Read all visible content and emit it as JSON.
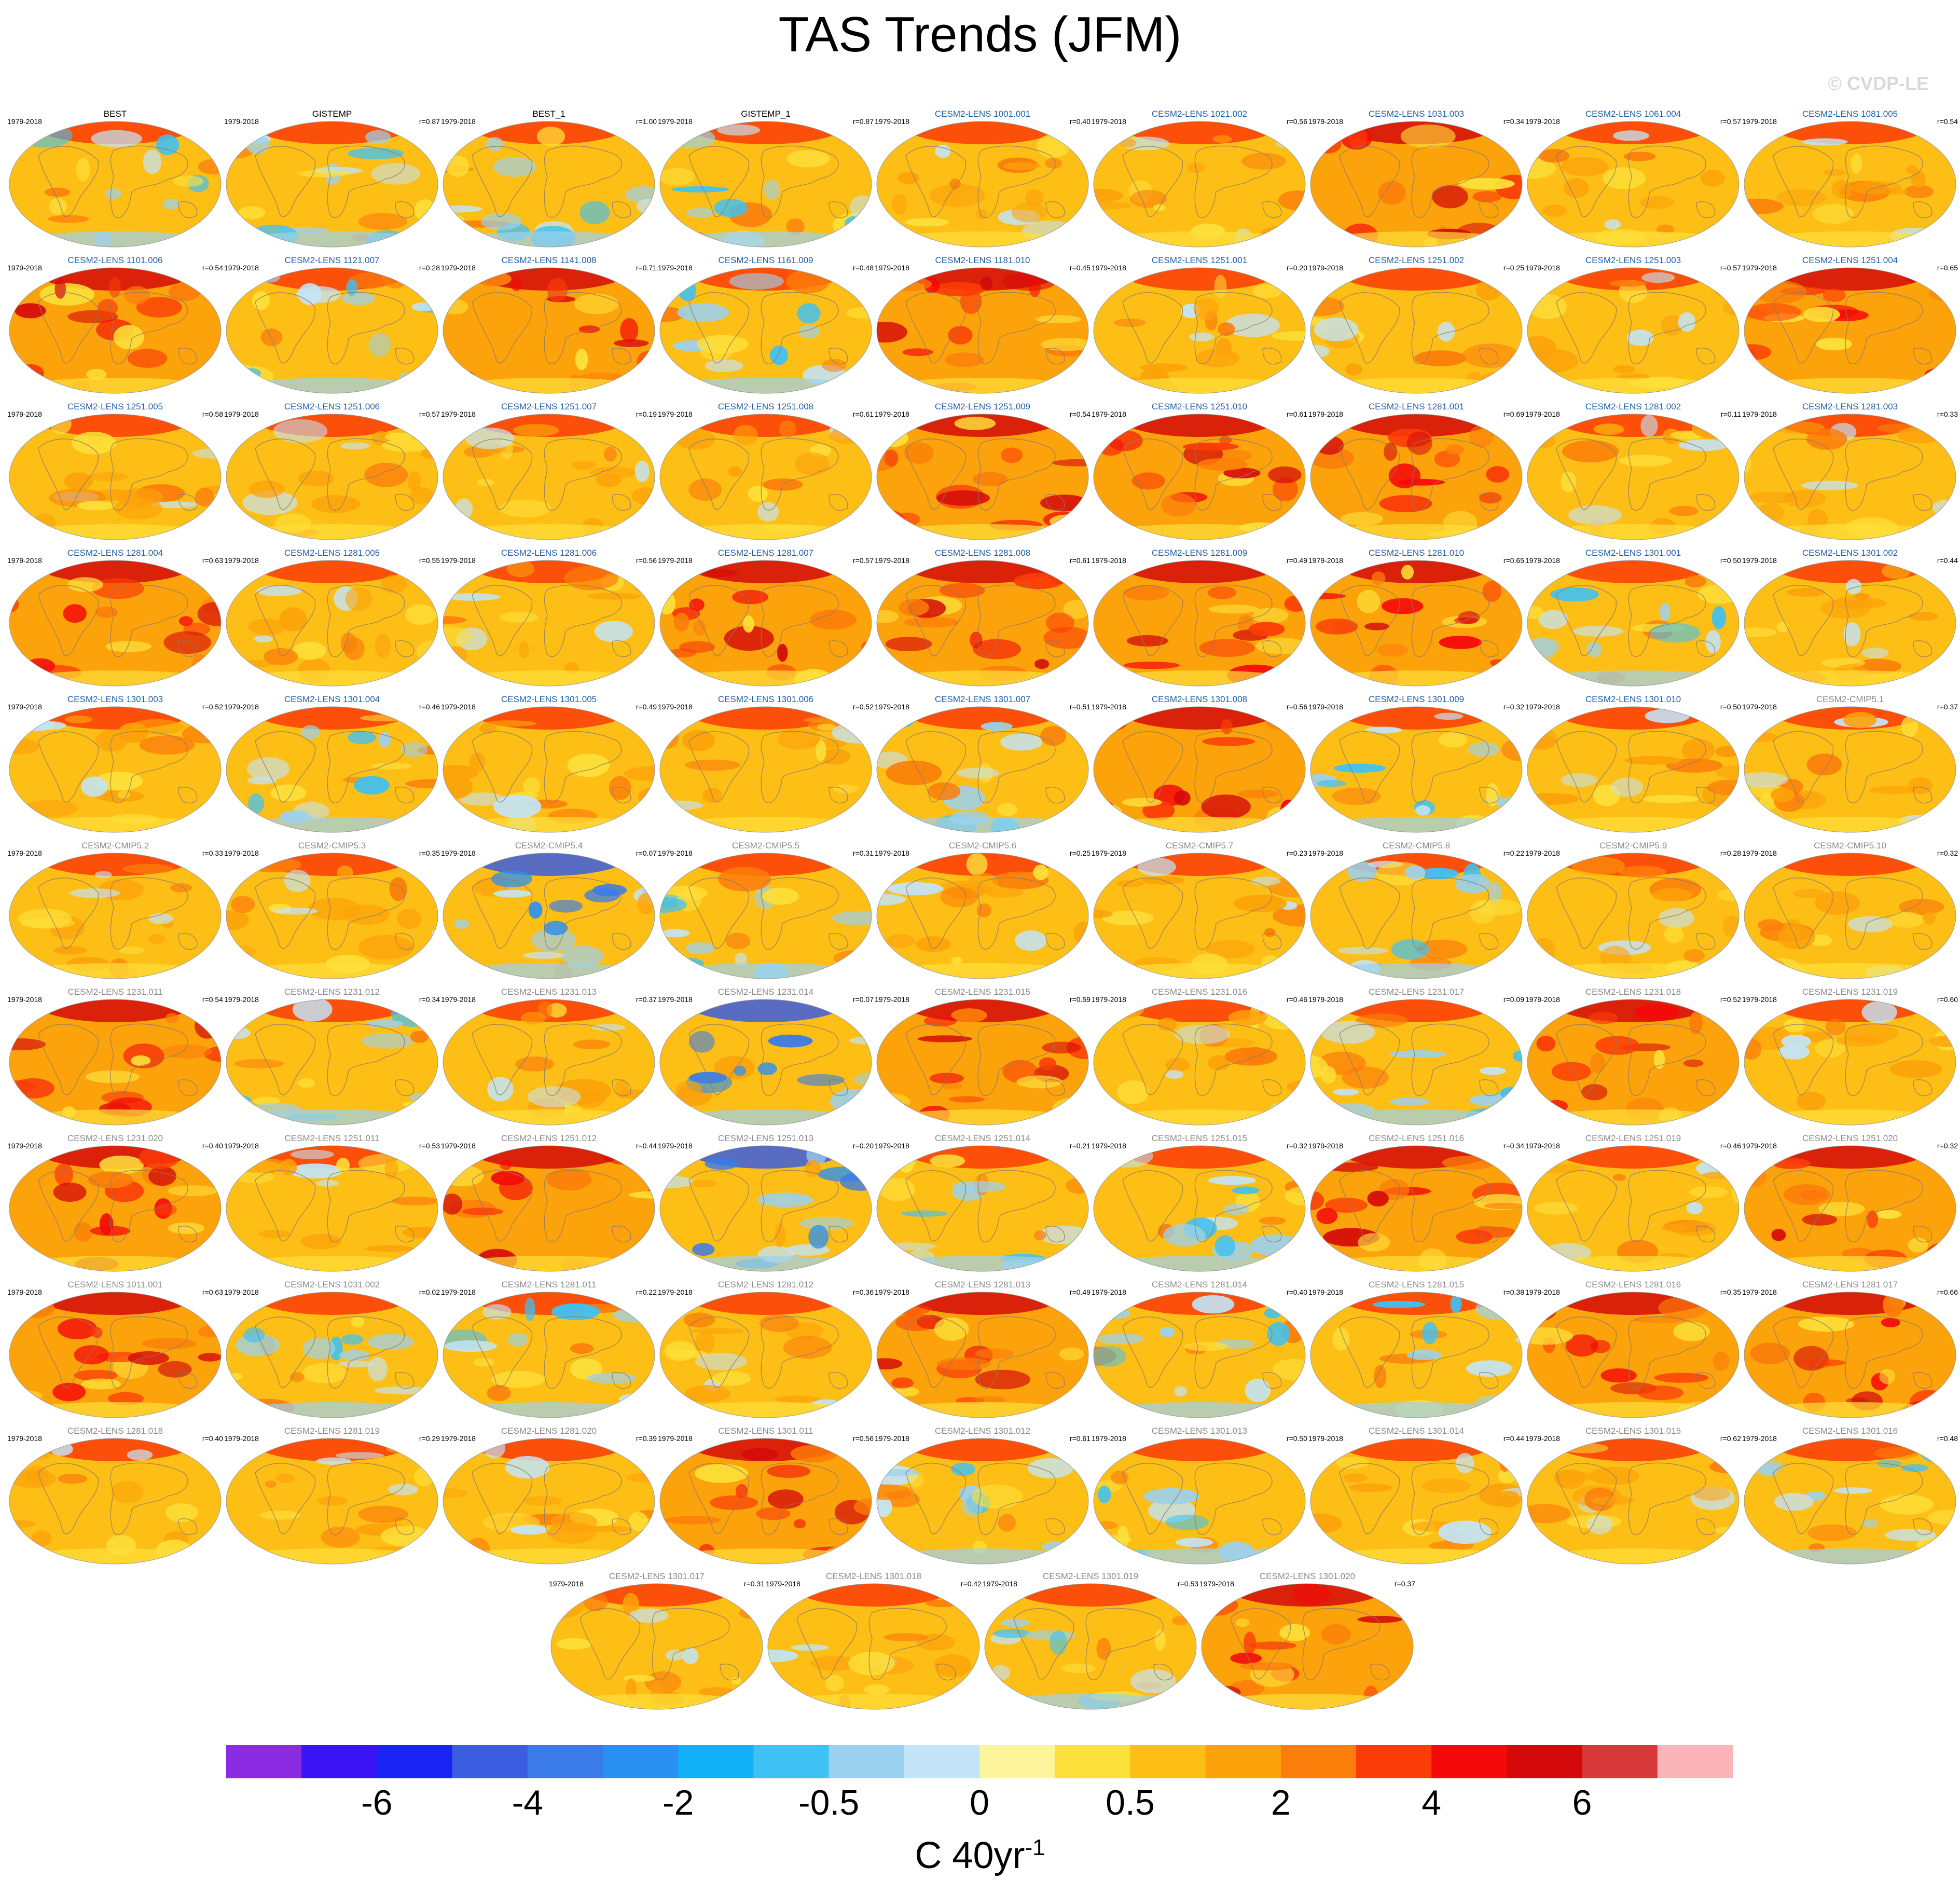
{
  "title": "TAS Trends (JFM)",
  "watermark": "© CVDP-LE",
  "period_label": "1979-2018",
  "colors": {
    "observed_title": "#000000",
    "cesm2_lens_title": "#1f5fa8",
    "other_title": "#8a8a8a",
    "land_outline": "#8c7b6b"
  },
  "panels": [
    {
      "name": "BEST",
      "corr": "",
      "style": "obs",
      "pattern": "mixed"
    },
    {
      "name": "GISTEMP",
      "corr": "r=0.87",
      "style": "obs",
      "pattern": "mixed"
    },
    {
      "name": "BEST_1",
      "corr": "r=1.00",
      "style": "obs",
      "pattern": "mixed"
    },
    {
      "name": "GISTEMP_1",
      "corr": "r=0.87",
      "style": "obs",
      "pattern": "mixed"
    },
    {
      "name": "CESM2-LENS 1001.001",
      "corr": "r=0.40",
      "style": "lens",
      "pattern": "warm"
    },
    {
      "name": "CESM2-LENS 1021.002",
      "corr": "r=0.56",
      "style": "lens",
      "pattern": "warm"
    },
    {
      "name": "CESM2-LENS 1031.003",
      "corr": "r=0.34",
      "style": "lens",
      "pattern": "hot"
    },
    {
      "name": "CESM2-LENS 1061.004",
      "corr": "r=0.57",
      "style": "lens",
      "pattern": "warm"
    },
    {
      "name": "CESM2-LENS 1081.005",
      "corr": "r=0.54",
      "style": "lens",
      "pattern": "warm"
    },
    {
      "name": "CESM2-LENS 1101.006",
      "corr": "r=0.54",
      "style": "lens",
      "pattern": "hot"
    },
    {
      "name": "CESM2-LENS 1121.007",
      "corr": "r=0.28",
      "style": "lens",
      "pattern": "mixed"
    },
    {
      "name": "CESM2-LENS 1141.008",
      "corr": "r=0.71",
      "style": "lens",
      "pattern": "hot"
    },
    {
      "name": "CESM2-LENS 1161.009",
      "corr": "r=0.48",
      "style": "lens",
      "pattern": "mixed"
    },
    {
      "name": "CESM2-LENS 1181.010",
      "corr": "r=0.45",
      "style": "lens",
      "pattern": "hot"
    },
    {
      "name": "CESM2-LENS 1251.001",
      "corr": "r=0.20",
      "style": "lens",
      "pattern": "warm"
    },
    {
      "name": "CESM2-LENS 1251.002",
      "corr": "r=0.25",
      "style": "lens",
      "pattern": "warm"
    },
    {
      "name": "CESM2-LENS 1251.003",
      "corr": "r=0.57",
      "style": "lens",
      "pattern": "warm"
    },
    {
      "name": "CESM2-LENS 1251.004",
      "corr": "r=0.65",
      "style": "lens",
      "pattern": "hot"
    },
    {
      "name": "CESM2-LENS 1251.005",
      "corr": "r=0.58",
      "style": "lens",
      "pattern": "warm"
    },
    {
      "name": "CESM2-LENS 1251.006",
      "corr": "r=0.57",
      "style": "lens",
      "pattern": "warm"
    },
    {
      "name": "CESM2-LENS 1251.007",
      "corr": "r=0.19",
      "style": "lens",
      "pattern": "warm"
    },
    {
      "name": "CESM2-LENS 1251.008",
      "corr": "r=0.61",
      "style": "lens",
      "pattern": "warm"
    },
    {
      "name": "CESM2-LENS 1251.009",
      "corr": "r=0.54",
      "style": "lens",
      "pattern": "hot"
    },
    {
      "name": "CESM2-LENS 1251.010",
      "corr": "r=0.61",
      "style": "lens",
      "pattern": "hot"
    },
    {
      "name": "CESM2-LENS 1281.001",
      "corr": "r=0.69",
      "style": "lens",
      "pattern": "hot"
    },
    {
      "name": "CESM2-LENS 1281.002",
      "corr": "r=0.11",
      "style": "lens",
      "pattern": "warm"
    },
    {
      "name": "CESM2-LENS 1281.003",
      "corr": "r=0.33",
      "style": "lens",
      "pattern": "warm"
    },
    {
      "name": "CESM2-LENS 1281.004",
      "corr": "r=0.63",
      "style": "lens",
      "pattern": "hot"
    },
    {
      "name": "CESM2-LENS 1281.005",
      "corr": "r=0.55",
      "style": "lens",
      "pattern": "warm"
    },
    {
      "name": "CESM2-LENS 1281.006",
      "corr": "r=0.56",
      "style": "lens",
      "pattern": "warm"
    },
    {
      "name": "CESM2-LENS 1281.007",
      "corr": "r=0.57",
      "style": "lens",
      "pattern": "hot"
    },
    {
      "name": "CESM2-LENS 1281.008",
      "corr": "r=0.61",
      "style": "lens",
      "pattern": "hot"
    },
    {
      "name": "CESM2-LENS 1281.009",
      "corr": "r=0.49",
      "style": "lens",
      "pattern": "hot"
    },
    {
      "name": "CESM2-LENS 1281.010",
      "corr": "r=0.65",
      "style": "lens",
      "pattern": "hot"
    },
    {
      "name": "CESM2-LENS 1301.001",
      "corr": "r=0.50",
      "style": "lens",
      "pattern": "mixed"
    },
    {
      "name": "CESM2-LENS 1301.002",
      "corr": "r=0.44",
      "style": "lens",
      "pattern": "warm"
    },
    {
      "name": "CESM2-LENS 1301.003",
      "corr": "r=0.52",
      "style": "lens",
      "pattern": "warm"
    },
    {
      "name": "CESM2-LENS 1301.004",
      "corr": "r=0.46",
      "style": "lens",
      "pattern": "mixed"
    },
    {
      "name": "CESM2-LENS 1301.005",
      "corr": "r=0.49",
      "style": "lens",
      "pattern": "warm"
    },
    {
      "name": "CESM2-LENS 1301.006",
      "corr": "r=0.52",
      "style": "lens",
      "pattern": "warm"
    },
    {
      "name": "CESM2-LENS 1301.007",
      "corr": "r=0.51",
      "style": "lens",
      "pattern": "mixed"
    },
    {
      "name": "CESM2-LENS 1301.008",
      "corr": "r=0.56",
      "style": "lens",
      "pattern": "hot"
    },
    {
      "name": "CESM2-LENS 1301.009",
      "corr": "r=0.32",
      "style": "lens",
      "pattern": "mixed"
    },
    {
      "name": "CESM2-LENS 1301.010",
      "corr": "r=0.50",
      "style": "lens",
      "pattern": "warm"
    },
    {
      "name": "CESM2-CMIP5.1",
      "corr": "r=0.37",
      "style": "other",
      "pattern": "warm"
    },
    {
      "name": "CESM2-CMIP5.2",
      "corr": "r=0.33",
      "style": "other",
      "pattern": "warm"
    },
    {
      "name": "CESM2-CMIP5.3",
      "corr": "r=0.35",
      "style": "other",
      "pattern": "warm"
    },
    {
      "name": "CESM2-CMIP5.4",
      "corr": "r=0.07",
      "style": "other",
      "pattern": "cool"
    },
    {
      "name": "CESM2-CMIP5.5",
      "corr": "r=0.31",
      "style": "other",
      "pattern": "mixed"
    },
    {
      "name": "CESM2-CMIP5.6",
      "corr": "r=0.25",
      "style": "other",
      "pattern": "warm"
    },
    {
      "name": "CESM2-CMIP5.7",
      "corr": "r=0.23",
      "style": "other",
      "pattern": "warm"
    },
    {
      "name": "CESM2-CMIP5.8",
      "corr": "r=0.22",
      "style": "other",
      "pattern": "mixed"
    },
    {
      "name": "CESM2-CMIP5.9",
      "corr": "r=0.28",
      "style": "other",
      "pattern": "warm"
    },
    {
      "name": "CESM2-CMIP5.10",
      "corr": "r=0.32",
      "style": "other",
      "pattern": "warm"
    },
    {
      "name": "CESM2-LENS 1231.011",
      "corr": "r=0.54",
      "style": "other",
      "pattern": "hot"
    },
    {
      "name": "CESM2-LENS 1231.012",
      "corr": "r=0.34",
      "style": "other",
      "pattern": "mixed"
    },
    {
      "name": "CESM2-LENS 1231.013",
      "corr": "r=0.37",
      "style": "other",
      "pattern": "warm"
    },
    {
      "name": "CESM2-LENS 1231.014",
      "corr": "r=0.07",
      "style": "other",
      "pattern": "cool"
    },
    {
      "name": "CESM2-LENS 1231.015",
      "corr": "r=0.59",
      "style": "other",
      "pattern": "hot"
    },
    {
      "name": "CESM2-LENS 1231.016",
      "corr": "r=0.46",
      "style": "other",
      "pattern": "warm"
    },
    {
      "name": "CESM2-LENS 1231.017",
      "corr": "r=0.09",
      "style": "other",
      "pattern": "mixed"
    },
    {
      "name": "CESM2-LENS 1231.018",
      "corr": "r=0.52",
      "style": "other",
      "pattern": "hot"
    },
    {
      "name": "CESM2-LENS 1231.019",
      "corr": "r=0.60",
      "style": "other",
      "pattern": "warm"
    },
    {
      "name": "CESM2-LENS 1231.020",
      "corr": "r=0.40",
      "style": "other",
      "pattern": "hot"
    },
    {
      "name": "CESM2-LENS 1251.011",
      "corr": "r=0.53",
      "style": "other",
      "pattern": "warm"
    },
    {
      "name": "CESM2-LENS 1251.012",
      "corr": "r=0.44",
      "style": "other",
      "pattern": "hot"
    },
    {
      "name": "CESM2-LENS 1251.013",
      "corr": "r=0.20",
      "style": "other",
      "pattern": "cool"
    },
    {
      "name": "CESM2-LENS 1251.014",
      "corr": "r=0.21",
      "style": "other",
      "pattern": "mixed"
    },
    {
      "name": "CESM2-LENS 1251.015",
      "corr": "r=0.32",
      "style": "other",
      "pattern": "mixed"
    },
    {
      "name": "CESM2-LENS 1251.016",
      "corr": "r=0.34",
      "style": "other",
      "pattern": "hot"
    },
    {
      "name": "CESM2-LENS 1251.019",
      "corr": "r=0.46",
      "style": "other",
      "pattern": "warm"
    },
    {
      "name": "CESM2-LENS 1251.020",
      "corr": "r=0.32",
      "style": "other",
      "pattern": "hot"
    },
    {
      "name": "CESM2-LENS 1011.001",
      "corr": "r=0.63",
      "style": "other",
      "pattern": "hot"
    },
    {
      "name": "CESM2-LENS 1031.002",
      "corr": "r=0.02",
      "style": "other",
      "pattern": "mixed"
    },
    {
      "name": "CESM2-LENS 1281.011",
      "corr": "r=0.22",
      "style": "other",
      "pattern": "mixed"
    },
    {
      "name": "CESM2-LENS 1281.012",
      "corr": "r=0.36",
      "style": "other",
      "pattern": "warm"
    },
    {
      "name": "CESM2-LENS 1281.013",
      "corr": "r=0.49",
      "style": "other",
      "pattern": "hot"
    },
    {
      "name": "CESM2-LENS 1281.014",
      "corr": "r=0.40",
      "style": "other",
      "pattern": "mixed"
    },
    {
      "name": "CESM2-LENS 1281.015",
      "corr": "r=0.38",
      "style": "other",
      "pattern": "mixed"
    },
    {
      "name": "CESM2-LENS 1281.016",
      "corr": "r=0.35",
      "style": "other",
      "pattern": "hot"
    },
    {
      "name": "CESM2-LENS 1281.017",
      "corr": "r=0.66",
      "style": "other",
      "pattern": "hot"
    },
    {
      "name": "CESM2-LENS 1281.018",
      "corr": "r=0.40",
      "style": "other",
      "pattern": "warm"
    },
    {
      "name": "CESM2-LENS 1281.019",
      "corr": "r=0.29",
      "style": "other",
      "pattern": "warm"
    },
    {
      "name": "CESM2-LENS 1281.020",
      "corr": "r=0.39",
      "style": "other",
      "pattern": "warm"
    },
    {
      "name": "CESM2-LENS 1301.011",
      "corr": "r=0.56",
      "style": "other",
      "pattern": "hot"
    },
    {
      "name": "CESM2-LENS 1301.012",
      "corr": "r=0.61",
      "style": "other",
      "pattern": "mixed"
    },
    {
      "name": "CESM2-LENS 1301.013",
      "corr": "r=0.50",
      "style": "other",
      "pattern": "mixed"
    },
    {
      "name": "CESM2-LENS 1301.014",
      "corr": "r=0.44",
      "style": "other",
      "pattern": "warm"
    },
    {
      "name": "CESM2-LENS 1301.015",
      "corr": "r=0.62",
      "style": "other",
      "pattern": "warm"
    },
    {
      "name": "CESM2-LENS 1301.016",
      "corr": "r=0.48",
      "style": "other",
      "pattern": "mixed"
    },
    {
      "name": "CESM2-LENS 1301.017",
      "corr": "r=0.31",
      "style": "other",
      "pattern": "warm"
    },
    {
      "name": "CESM2-LENS 1301.018",
      "corr": "r=0.42",
      "style": "other",
      "pattern": "warm"
    },
    {
      "name": "CESM2-LENS 1301.019",
      "corr": "r=0.53",
      "style": "other",
      "pattern": "mixed"
    },
    {
      "name": "CESM2-LENS 1301.020",
      "corr": "r=0.37",
      "style": "other",
      "pattern": "hot"
    }
  ],
  "colorbar": {
    "colors": [
      "#8a2be2",
      "#3b14f5",
      "#1a25f5",
      "#3b5ee0",
      "#3a7be8",
      "#2a91f2",
      "#12b0f7",
      "#3fc1f4",
      "#9bd1ee",
      "#c3e4f7",
      "#fcf59c",
      "#fde03a",
      "#fdbf16",
      "#fca20a",
      "#fb7d0a",
      "#fb3b08",
      "#f40a0a",
      "#d40a0a",
      "#d9383a",
      "#fbb4b8"
    ],
    "tick_labels": [
      "-6",
      "-4",
      "-2",
      "-0.5",
      "0",
      "0.5",
      "2",
      "4",
      "6"
    ],
    "units": "C 40yr",
    "units_exp": "-1"
  }
}
